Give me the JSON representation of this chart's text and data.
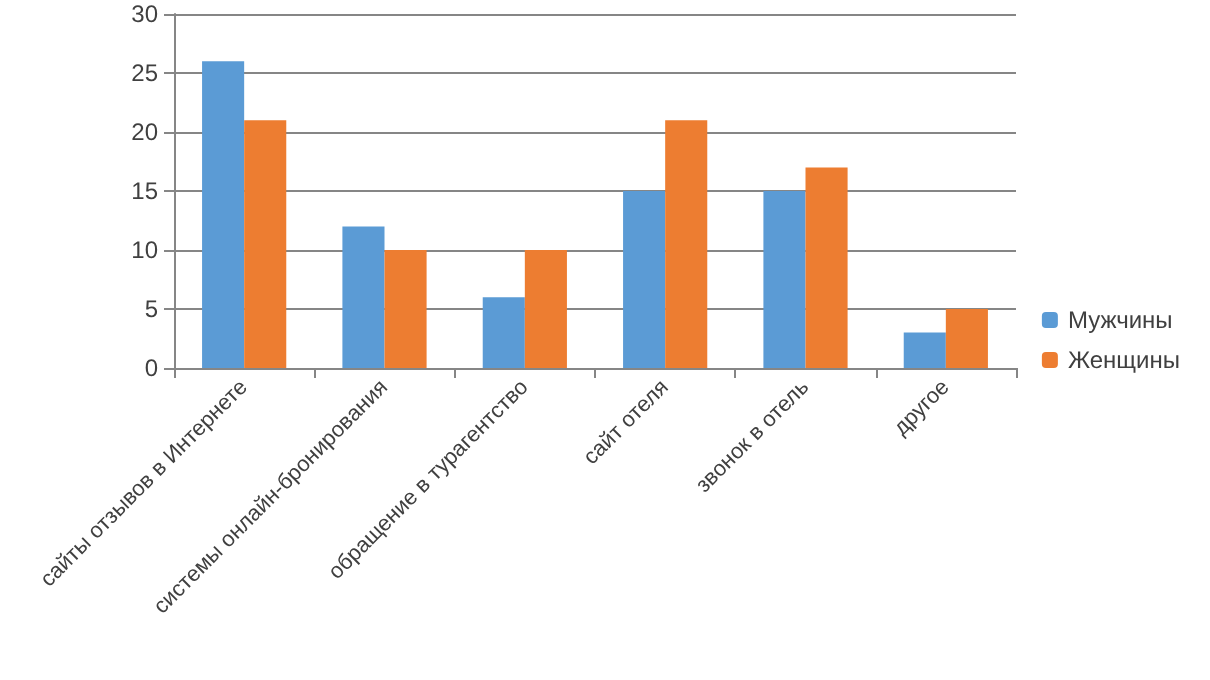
{
  "chart_data": {
    "type": "bar",
    "categories": [
      "сайты отзывов в Интернете",
      "системы онлайн-бронирования",
      "обращение в турагентство",
      "сайт отеля",
      "звонок в отель",
      "другое"
    ],
    "series": [
      {
        "name": "Мужчины",
        "color": "#5b9bd5",
        "values": [
          26,
          12,
          6,
          15,
          15,
          3
        ]
      },
      {
        "name": "Женщины",
        "color": "#ed7d31",
        "values": [
          21,
          10,
          10,
          21,
          17,
          5
        ]
      }
    ],
    "ylim": [
      0,
      30
    ],
    "yticks": [
      0,
      5,
      10,
      15,
      20,
      25,
      30
    ],
    "grid": "y",
    "legend": "right"
  }
}
